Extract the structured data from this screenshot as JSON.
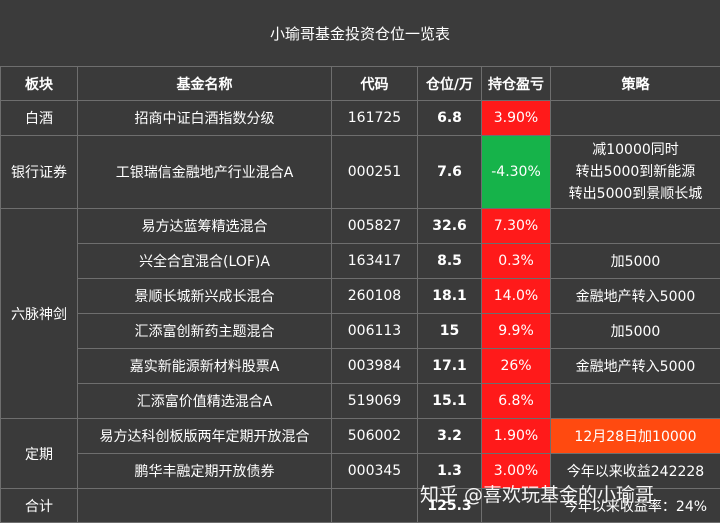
{
  "title": "小瑜哥基金投资仓位一览表",
  "headers": [
    "板块",
    "基金名称",
    "代码",
    "仓位/万",
    "持仓盈亏",
    "策略"
  ],
  "rows": [
    {
      "sector": "白酒",
      "name": "招商中证白酒指数分级",
      "code": "161725",
      "position": "6.8",
      "pl": "3.90%",
      "pl_sign": "pos",
      "strategy": ""
    },
    {
      "sector": "银行证券",
      "name": "工银瑞信金融地产行业混合A",
      "code": "000251",
      "position": "7.6",
      "pl": "-4.30%",
      "pl_sign": "neg",
      "strategy_lines": [
        "减10000同时",
        "转出5000到新能源",
        "转出5000到景顺长城"
      ]
    },
    {
      "sector": "六脉神剑",
      "name": "易方达蓝筹精选混合",
      "code": "005827",
      "position": "32.6",
      "pl": "7.30%",
      "pl_sign": "pos",
      "strategy": ""
    },
    {
      "sector": "",
      "name": "兴全合宜混合(LOF)A",
      "code": "163417",
      "position": "8.5",
      "pl": "0.3%",
      "pl_sign": "pos",
      "strategy": "加5000"
    },
    {
      "sector": "",
      "name": "景顺长城新兴成长混合",
      "code": "260108",
      "position": "18.1",
      "pl": "14.0%",
      "pl_sign": "pos",
      "strategy": "金融地产转入5000"
    },
    {
      "sector": "",
      "name": "汇添富创新药主题混合",
      "code": "006113",
      "position": "15",
      "pl": "9.9%",
      "pl_sign": "pos",
      "strategy": "加5000"
    },
    {
      "sector": "",
      "name": "嘉实新能源新材料股票A",
      "code": "003984",
      "position": "17.1",
      "pl": "26%",
      "pl_sign": "pos",
      "strategy": "金融地产转入5000"
    },
    {
      "sector": "",
      "name": "汇添富价值精选混合A",
      "code": "519069",
      "position": "15.1",
      "pl": "6.8%",
      "pl_sign": "pos",
      "strategy": ""
    },
    {
      "sector": "定期",
      "name": "易方达科创板版两年定期开放混合",
      "code": "506002",
      "position": "3.2",
      "pl": "1.90%",
      "pl_sign": "pos",
      "strategy": "12月28日加10000"
    },
    {
      "sector": "",
      "name": "鹏华丰融定期开放债券",
      "code": "000345",
      "position": "1.3",
      "pl": "3.00%",
      "pl_sign": "pos",
      "strategy": "今年以来收益242228"
    }
  ],
  "total": {
    "label": "合计",
    "position": "125.3",
    "strategy": "今年以来收益率：24%"
  },
  "watermark": "知乎 @喜欢玩基金的小瑜哥",
  "colors": {
    "profit": "#ff1a1a",
    "loss": "#16b34a",
    "highlight": "#ff4a10",
    "position_text": "#f2b83a"
  }
}
